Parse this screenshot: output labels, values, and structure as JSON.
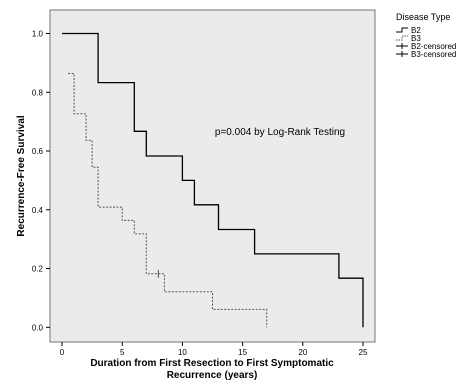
{
  "chart_data": {
    "type": "line",
    "subtype": "kaplan-meier step survival",
    "title": "",
    "xlabel": "Duration from First Resection to First Symptomatic Recurrence (years)",
    "xlabel_lines": [
      "Duration from First Resection to First Symptomatic",
      "Recurrence (years)"
    ],
    "ylabel": "Recurrence-Free Survival",
    "xlim": [
      -1,
      26
    ],
    "ylim": [
      -0.05,
      1.08
    ],
    "xticks": [
      0,
      5,
      10,
      15,
      20,
      25
    ],
    "xtick_labels": [
      "0",
      "5",
      "10",
      "15",
      "20",
      "25"
    ],
    "yticks": [
      0.0,
      0.2,
      0.4,
      0.6,
      0.8,
      1.0
    ],
    "ytick_labels": [
      "0.0",
      "0.2",
      "0.4",
      "0.6",
      "0.8",
      "1.0"
    ],
    "grid": false,
    "plot_background": "#ebebeb",
    "annotation": "p=0.004 by Log-Rank Testing",
    "legend": {
      "title": "Disease Type",
      "position": "outside-top-right",
      "entries": [
        {
          "label": "B2",
          "marker": "solid-step"
        },
        {
          "label": "B3",
          "marker": "dashed-step"
        },
        {
          "label": "B2-censored",
          "marker": "cross"
        },
        {
          "label": "B3-censored",
          "marker": "cross"
        }
      ]
    },
    "series": [
      {
        "name": "B2",
        "style": "solid",
        "color": "#000000",
        "x": [
          0,
          3,
          3,
          6,
          6,
          7,
          7,
          10,
          10,
          11,
          11,
          13,
          13,
          16,
          16,
          23,
          23,
          25,
          25
        ],
        "y": [
          1.0,
          1.0,
          0.833,
          0.833,
          0.667,
          0.667,
          0.583,
          0.583,
          0.5,
          0.5,
          0.417,
          0.417,
          0.333,
          0.333,
          0.25,
          0.25,
          0.167,
          0.167,
          0.0
        ],
        "censored": []
      },
      {
        "name": "B3",
        "style": "dashed",
        "color": "#555555",
        "x": [
          0.5,
          1.0,
          1.0,
          2.0,
          2.0,
          2.5,
          2.5,
          3.0,
          3.0,
          5.0,
          5.0,
          6.0,
          6.0,
          7.0,
          7.0,
          8.5,
          8.5,
          12.5,
          12.5,
          17.0,
          17.0
        ],
        "y": [
          0.864,
          0.864,
          0.727,
          0.727,
          0.636,
          0.636,
          0.545,
          0.545,
          0.409,
          0.409,
          0.364,
          0.364,
          0.318,
          0.318,
          0.182,
          0.182,
          0.121,
          0.121,
          0.061,
          0.061,
          0.0
        ],
        "censored": [
          {
            "x": 8.0,
            "y": 0.182
          }
        ]
      }
    ]
  }
}
